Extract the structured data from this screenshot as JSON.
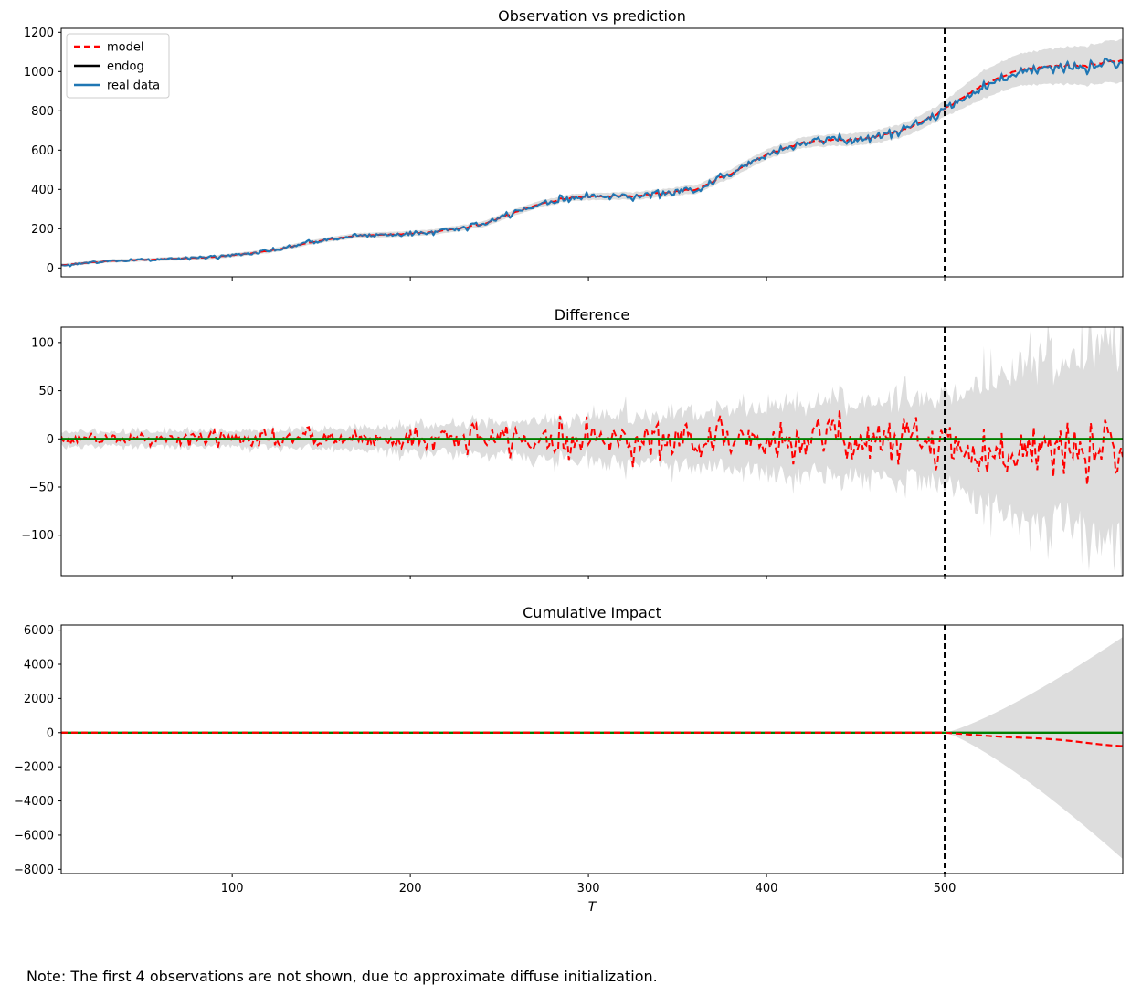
{
  "footnote": "Note: The first 4 observations are not shown, due to approximate diffuse initialization.",
  "colors": {
    "model": "#ff0000",
    "endog": "#000000",
    "real_data": "#1f77b4",
    "zero_line": "#008000",
    "band": "#dddddd",
    "intervention": "#000000"
  },
  "chart_data": [
    {
      "type": "line",
      "title": "Observation vs prediction",
      "xlabel": "",
      "ylabel": "",
      "xlim": [
        4,
        600
      ],
      "ylim": [
        -45,
        1220
      ],
      "yticks": [
        0,
        200,
        400,
        600,
        800,
        1000,
        1200
      ],
      "xticks": [
        100,
        200,
        300,
        400,
        500
      ],
      "show_xtick_labels": false,
      "intervention_x": 500,
      "legend": {
        "placement": "top-left",
        "entries": [
          "model",
          "endog",
          "real data"
        ]
      },
      "trend_knots": {
        "x": [
          4,
          30,
          60,
          90,
          120,
          150,
          170,
          200,
          215,
          240,
          270,
          290,
          330,
          360,
          380,
          400,
          420,
          440,
          460,
          480,
          500,
          520,
          540,
          560,
          580,
          600
        ],
        "y": [
          15,
          35,
          45,
          55,
          85,
          140,
          165,
          175,
          185,
          220,
          320,
          360,
          370,
          400,
          480,
          580,
          640,
          650,
          665,
          710,
          810,
          930,
          1010,
          1030,
          1035,
          1060
        ]
      },
      "band_halfwidth": {
        "x": [
          4,
          100,
          200,
          300,
          400,
          480,
          500,
          520,
          560,
          600
        ],
        "y": [
          8,
          10,
          14,
          18,
          25,
          35,
          40,
          70,
          90,
          110
        ]
      },
      "series": [
        {
          "name": "model",
          "style": "dashed",
          "role": "prediction"
        },
        {
          "name": "endog",
          "style": "solid",
          "role": "legend_only"
        },
        {
          "name": "real data",
          "style": "solid",
          "role": "observation",
          "noise_sd": 6
        }
      ]
    },
    {
      "type": "line",
      "title": "Difference",
      "xlabel": "",
      "ylabel": "",
      "xlim": [
        4,
        600
      ],
      "ylim": [
        -142,
        116
      ],
      "yticks": [
        -100,
        -50,
        0,
        50,
        100
      ],
      "xticks": [
        100,
        200,
        300,
        400,
        500
      ],
      "show_xtick_labels": false,
      "intervention_x": 500,
      "zero_line": 0,
      "diff_sd": {
        "x": [
          4,
          100,
          200,
          300,
          400,
          500,
          600
        ],
        "y": [
          3,
          4,
          6,
          9,
          11,
          12,
          14
        ]
      },
      "post_shift": -12,
      "band_halfwidth": {
        "x": [
          4,
          100,
          200,
          300,
          400,
          490,
          500,
          520,
          560,
          600
        ],
        "y": [
          7,
          8,
          12,
          20,
          32,
          40,
          45,
          60,
          80,
          100
        ]
      },
      "series": [
        {
          "name": "difference",
          "style": "dashed",
          "role": "difference"
        }
      ]
    },
    {
      "type": "line",
      "title": "Cumulative Impact",
      "xlabel": "T",
      "ylabel": "",
      "xlim": [
        4,
        600
      ],
      "ylim": [
        -8250,
        6300
      ],
      "yticks": [
        -8000,
        -6000,
        -4000,
        -2000,
        0,
        2000,
        4000,
        6000
      ],
      "xticks": [
        100,
        200,
        300,
        400,
        500
      ],
      "show_xtick_labels": true,
      "intervention_x": 500,
      "zero_line": 0,
      "cumulative_end": -800,
      "band_end_upper": 5600,
      "band_end_lower": -7400,
      "series": [
        {
          "name": "cumulative",
          "style": "dashed",
          "role": "cumulative"
        }
      ]
    }
  ]
}
